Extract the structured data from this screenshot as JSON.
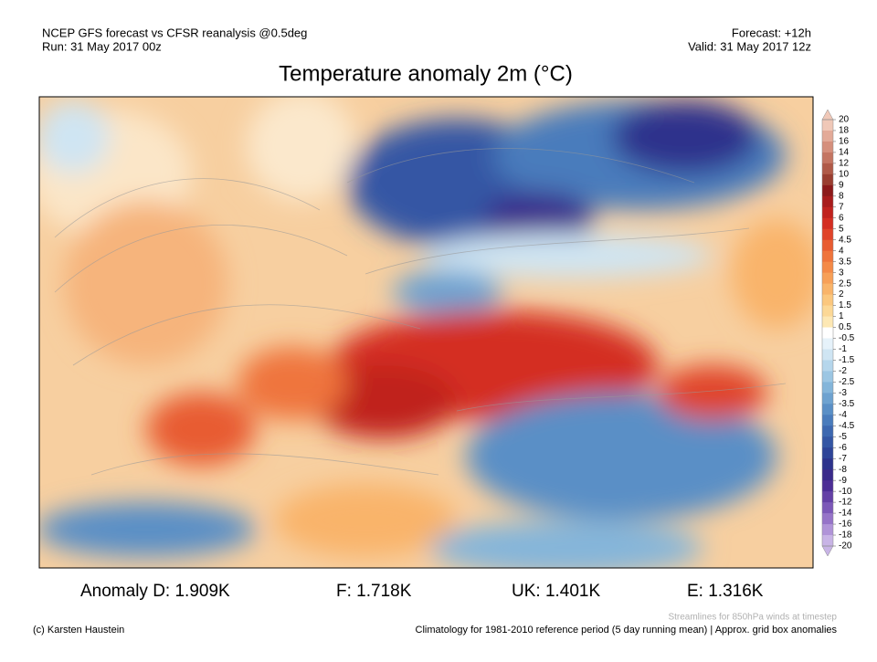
{
  "header": {
    "left": [
      "NCEP GFS forecast vs CFSR reanalysis @0.5deg",
      "Run: 31 May 2017 00z"
    ],
    "right": [
      "Forecast: +12h",
      "Valid: 31 May 2017 12z"
    ],
    "title": "Temperature anomaly 2m (°C)"
  },
  "colorbar": {
    "ticks": [
      20,
      18,
      16,
      14,
      12,
      10,
      9,
      8,
      7,
      6,
      5,
      4.5,
      4,
      3.5,
      3,
      2.5,
      2,
      1.5,
      1,
      0.5,
      -0.5,
      -1,
      -1.5,
      -2,
      -2.5,
      -3,
      -3.5,
      -4,
      -4.5,
      -5,
      -6,
      -7,
      -8,
      -9,
      -10,
      -12,
      -14,
      -16,
      -18,
      -20
    ],
    "colors": [
      "#f0c8b8",
      "#e3aa98",
      "#d58f7c",
      "#c47562",
      "#b05a48",
      "#9a3e30",
      "#8c1a1a",
      "#a81c1c",
      "#c0221e",
      "#d42e22",
      "#e0442a",
      "#e85c32",
      "#ef743c",
      "#f48a48",
      "#f7a058",
      "#f9b46a",
      "#fbc77e",
      "#fcd896",
      "#fde8b4",
      "#ffffff",
      "#e6f2fa",
      "#cfe5f3",
      "#b5d6ec",
      "#9cc6e3",
      "#84b5da",
      "#6ea2d0",
      "#5a8fc6",
      "#4a7cbc",
      "#3d68b0",
      "#3456a4",
      "#2e4498",
      "#2d338c",
      "#3a2a8a",
      "#4d2e96",
      "#6440a6",
      "#7c58b8",
      "#9674c8",
      "#b094d8",
      "#c8b4e6"
    ]
  },
  "anomalies": [
    "Anomaly D: 1.909K",
    "F: 1.718K",
    "UK: 1.401K",
    "E: 1.316K"
  ],
  "footer": {
    "credit": "(c) Karsten Haustein",
    "streamlines": "Streamlines for 850hPa winds at timestep",
    "climatology": "Climatology for 1981-2010 reference period (5 day running mean) | Approx. grid box anomalies"
  }
}
